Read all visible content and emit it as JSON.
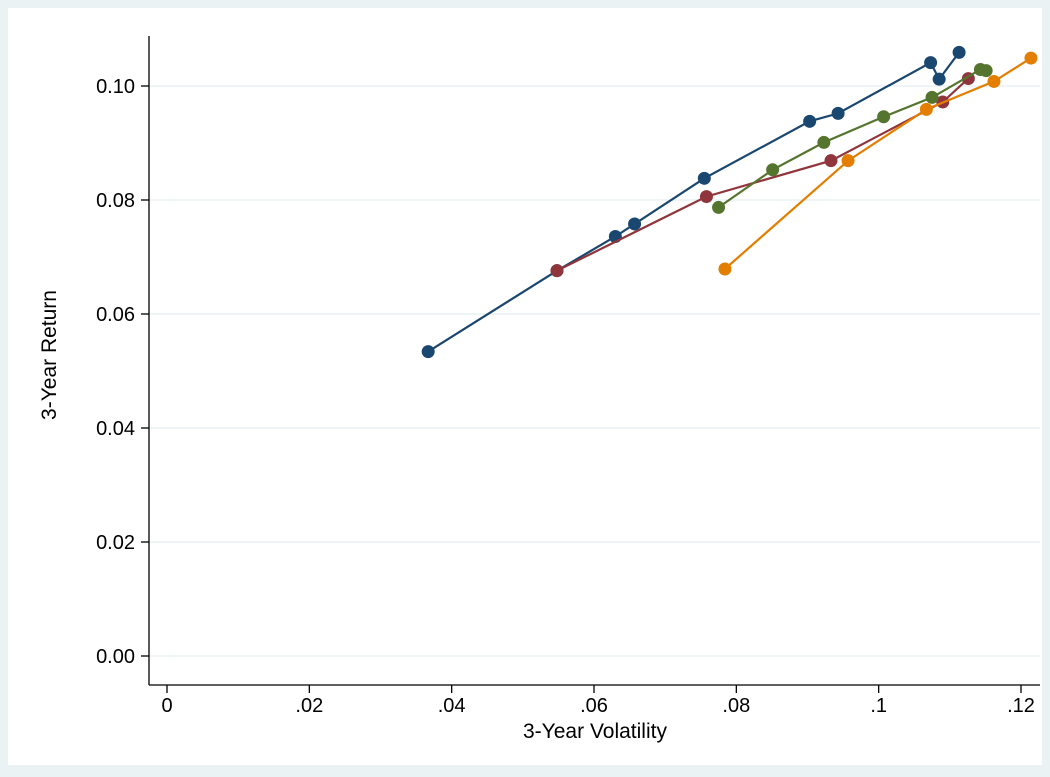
{
  "chart_data": {
    "type": "line",
    "title": "",
    "xlabel": "3-Year Volatility",
    "ylabel": "3-Year Return",
    "xlim": [
      0,
      0.12
    ],
    "ylim": [
      0,
      0.105
    ],
    "x_ticks": [
      0,
      0.02,
      0.04,
      0.06,
      0.08,
      0.1,
      0.12
    ],
    "x_tick_labels": [
      "0",
      ".02",
      ".04",
      ".06",
      ".08",
      ".1",
      ".12"
    ],
    "y_ticks": [
      0,
      0.02,
      0.04,
      0.06,
      0.08,
      0.1
    ],
    "y_tick_labels": [
      "0.00",
      "0.02",
      "0.04",
      "0.06",
      "0.08",
      "0.10"
    ],
    "grid": "horizontal",
    "legend": "none",
    "colors": {
      "background": "#eaf2f3",
      "plot_background": "#ffffff",
      "grid": "#eaf2f3"
    },
    "series": [
      {
        "color": "#1a476f",
        "points": [
          [
            0.0367,
            0.0534
          ],
          [
            0.0548,
            0.0676
          ],
          [
            0.063,
            0.0736
          ],
          [
            0.0657,
            0.0758
          ],
          [
            0.0755,
            0.0838
          ],
          [
            0.0903,
            0.0938
          ],
          [
            0.0943,
            0.0952
          ],
          [
            0.1073,
            0.1041
          ],
          [
            0.1085,
            0.1012
          ],
          [
            0.1113,
            0.1059
          ]
        ]
      },
      {
        "color": "#90353b",
        "points": [
          [
            0.0548,
            0.0676
          ],
          [
            0.0758,
            0.0806
          ],
          [
            0.0933,
            0.0869
          ],
          [
            0.109,
            0.0972
          ],
          [
            0.1126,
            0.1013
          ]
        ]
      },
      {
        "color": "#55752f",
        "points": [
          [
            0.0775,
            0.0787
          ],
          [
            0.0851,
            0.0853
          ],
          [
            0.0923,
            0.0901
          ],
          [
            0.1007,
            0.0946
          ],
          [
            0.1075,
            0.098
          ],
          [
            0.1143,
            0.1029
          ],
          [
            0.1151,
            0.1027
          ]
        ]
      },
      {
        "color": "#e37e00",
        "points": [
          [
            0.0784,
            0.0679
          ],
          [
            0.0957,
            0.0869
          ],
          [
            0.1067,
            0.0959
          ],
          [
            0.1162,
            0.1008
          ],
          [
            0.1214,
            0.1049
          ]
        ]
      }
    ]
  }
}
